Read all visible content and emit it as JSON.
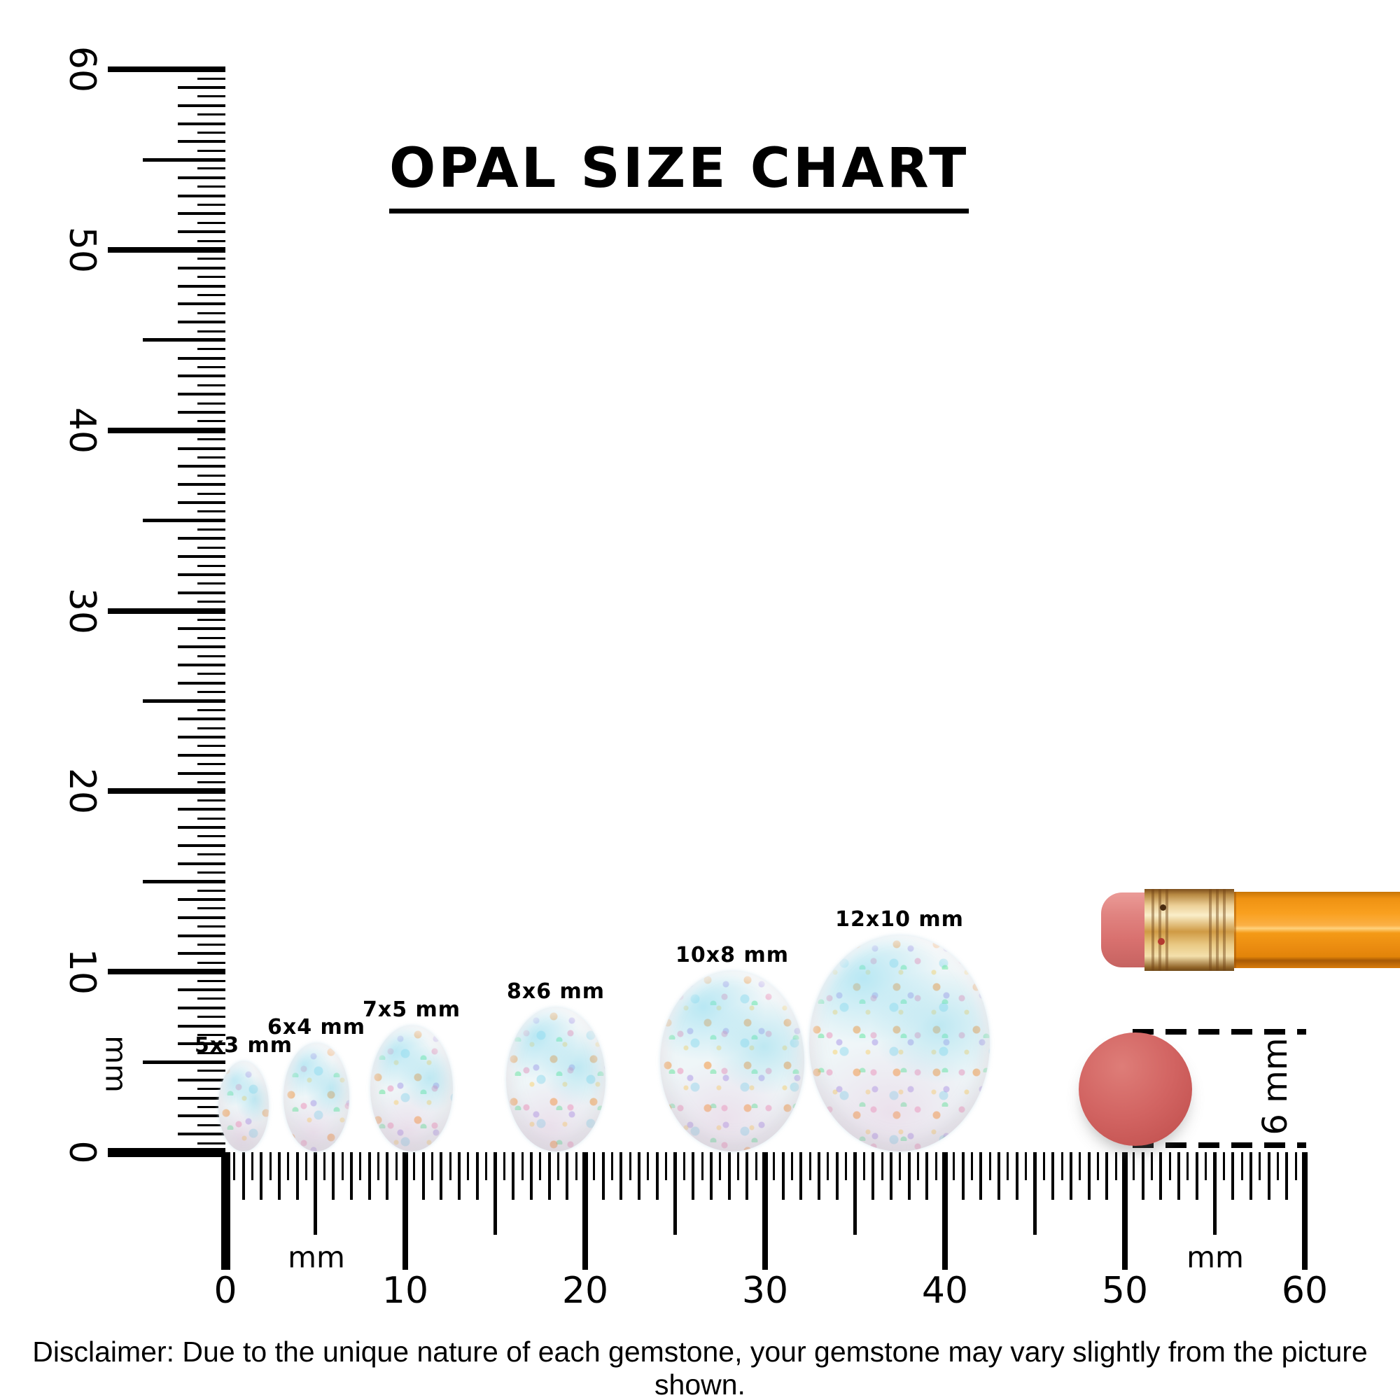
{
  "title": "OPAL SIZE CHART",
  "rulers": {
    "unit": "mm",
    "vertical": {
      "min": 0,
      "max": 60,
      "major_step": 10,
      "minor_step": 1,
      "sub_step": 0.5,
      "labels": [
        "0",
        "10",
        "20",
        "30",
        "40",
        "50",
        "60"
      ]
    },
    "horizontal": {
      "min": 0,
      "max": 60,
      "major_step": 10,
      "minor_step": 1,
      "sub_step": 0.5,
      "labels": [
        "0",
        "10",
        "20",
        "30",
        "40",
        "50",
        "60"
      ]
    }
  },
  "opals": [
    {
      "label": "5x3 mm",
      "length_mm": 5,
      "width_mm": 3
    },
    {
      "label": "6x4 mm",
      "length_mm": 6,
      "width_mm": 4
    },
    {
      "label": "7x5 mm",
      "length_mm": 7,
      "width_mm": 5
    },
    {
      "label": "8x6 mm",
      "length_mm": 8,
      "width_mm": 6
    },
    {
      "label": "10x8 mm",
      "length_mm": 10,
      "width_mm": 8
    },
    {
      "label": "12x10 mm",
      "length_mm": 12,
      "width_mm": 10
    }
  ],
  "comparison": {
    "object": "pencil-eraser",
    "diameter_label": "6 mm",
    "diameter_mm": 6
  },
  "disclaimer": "Disclaimer: Due to the unique nature of each gemstone, your gemstone may vary slightly from the picture shown.",
  "colors": {
    "ink": "#000000",
    "eraser_red": "#d26462",
    "eraser_pink": "#df827e",
    "ferrule_gold": "#e9c984",
    "pencil_orange": "#f9a01f",
    "opal_base": "#eff6f8"
  }
}
